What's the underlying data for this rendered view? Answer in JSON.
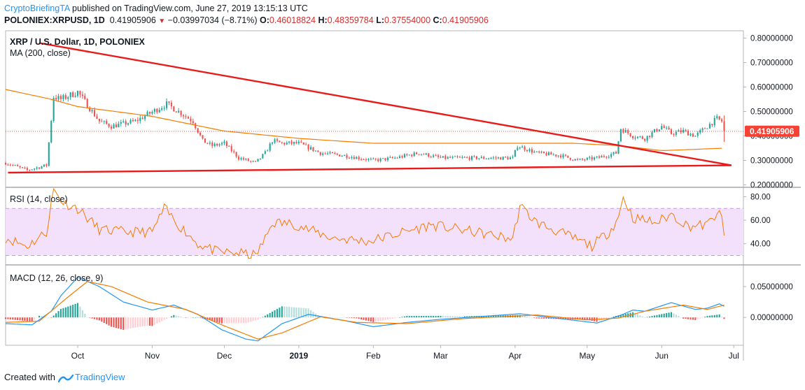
{
  "header": {
    "author": "CryptoBriefingTA",
    "published": " published on TradingView.com, June 27, 2019 13:15:13 UTC"
  },
  "symbol_line": {
    "symbol": "POLONIEX:XRPUSD, 1D",
    "last": "0.41905906",
    "change": "−0.03997034 (−8.71%)",
    "o_label": "O:",
    "o": "0.46018824",
    "h_label": "H:",
    "h": "0.48359784",
    "l_label": "L:",
    "l": "0.37554000",
    "c_label": "C:",
    "c": "0.41905906"
  },
  "footer": {
    "created_with": "Created with",
    "brand": "TradingView"
  },
  "colors": {
    "up": "#26a69a",
    "down": "#ef5350",
    "ma": "#f57c00",
    "trend": "#e81a1a",
    "rsi": "#f57c00",
    "macd": "#2196f3",
    "signal": "#f57c00",
    "price_label_bg": "#f44336",
    "rsi_band": "#f3e0fb"
  },
  "chart_data": [
    {
      "type": "candlestick",
      "title": "XRP / U.S. Dollar, 1D, POLONIEX",
      "indicator_label": "MA (200, close)",
      "x_tick_labels": [
        "Oct",
        "Nov",
        "Dec",
        "2019",
        "Feb",
        "Mar",
        "Apr",
        "May",
        "Jun",
        "Jul"
      ],
      "y_ticks": [
        "0.80000000",
        "0.70000000",
        "0.60000000",
        "0.50000000",
        "0.40000000",
        "0.30000000",
        "0.20000000"
      ],
      "ylim": [
        0.19,
        0.83
      ],
      "last_price_label": "0.41905906",
      "close_anchors": [
        [
          "2018-09-01",
          0.29
        ],
        [
          "2018-09-10",
          0.26
        ],
        [
          "2018-09-18",
          0.28
        ],
        [
          "2018-09-21",
          0.56
        ],
        [
          "2018-09-24",
          0.55
        ],
        [
          "2018-10-01",
          0.58
        ],
        [
          "2018-10-10",
          0.46
        ],
        [
          "2018-10-15",
          0.44
        ],
        [
          "2018-10-25",
          0.46
        ],
        [
          "2018-11-05",
          0.52
        ],
        [
          "2018-11-07",
          0.53
        ],
        [
          "2018-11-12",
          0.5
        ],
        [
          "2018-11-18",
          0.46
        ],
        [
          "2018-11-22",
          0.38
        ],
        [
          "2018-11-26",
          0.36
        ],
        [
          "2018-12-01",
          0.37
        ],
        [
          "2018-12-07",
          0.31
        ],
        [
          "2018-12-14",
          0.29
        ],
        [
          "2018-12-18",
          0.33
        ],
        [
          "2018-12-21",
          0.38
        ],
        [
          "2018-12-25",
          0.37
        ],
        [
          "2019-01-01",
          0.37
        ],
        [
          "2019-01-10",
          0.33
        ],
        [
          "2019-01-20",
          0.32
        ],
        [
          "2019-02-01",
          0.3
        ],
        [
          "2019-02-10",
          0.31
        ],
        [
          "2019-02-20",
          0.33
        ],
        [
          "2019-03-01",
          0.31
        ],
        [
          "2019-03-20",
          0.31
        ],
        [
          "2019-03-31",
          0.31
        ],
        [
          "2019-04-02",
          0.36
        ],
        [
          "2019-04-10",
          0.33
        ],
        [
          "2019-04-20",
          0.32
        ],
        [
          "2019-04-27",
          0.3
        ],
        [
          "2019-05-05",
          0.31
        ],
        [
          "2019-05-13",
          0.33
        ],
        [
          "2019-05-15",
          0.43
        ],
        [
          "2019-05-20",
          0.4
        ],
        [
          "2019-05-25",
          0.39
        ],
        [
          "2019-06-01",
          0.44
        ],
        [
          "2019-06-05",
          0.41
        ],
        [
          "2019-06-10",
          0.42
        ],
        [
          "2019-06-15",
          0.4
        ],
        [
          "2019-06-20",
          0.44
        ],
        [
          "2019-06-24",
          0.47
        ],
        [
          "2019-06-26",
          0.46
        ],
        [
          "2019-06-27",
          0.419
        ]
      ],
      "ma200_anchors": [
        [
          "2018-09-01",
          0.59
        ],
        [
          "2018-09-20",
          0.55
        ],
        [
          "2018-10-01",
          0.52
        ],
        [
          "2018-11-01",
          0.48
        ],
        [
          "2018-12-01",
          0.42
        ],
        [
          "2019-01-01",
          0.39
        ],
        [
          "2019-02-01",
          0.37
        ],
        [
          "2019-03-01",
          0.37
        ],
        [
          "2019-04-01",
          0.37
        ],
        [
          "2019-04-25",
          0.37
        ],
        [
          "2019-05-15",
          0.36
        ],
        [
          "2019-06-01",
          0.34
        ],
        [
          "2019-06-27",
          0.35
        ]
      ],
      "trendlines": [
        {
          "from": [
            "2018-09-15",
            0.78
          ],
          "to": [
            "2019-06-30",
            0.28
          ]
        },
        {
          "from": [
            "2018-09-02",
            0.25
          ],
          "to": [
            "2019-06-30",
            0.28
          ]
        }
      ]
    },
    {
      "type": "line",
      "title": "RSI (14, close)",
      "y_ticks": [
        "80.00",
        "60.00",
        "40.00"
      ],
      "ylim": [
        22,
        88
      ],
      "band": [
        30,
        70
      ],
      "anchors": [
        [
          "2018-09-01",
          45
        ],
        [
          "2018-09-10",
          38
        ],
        [
          "2018-09-18",
          50
        ],
        [
          "2018-09-21",
          86
        ],
        [
          "2018-09-25",
          75
        ],
        [
          "2018-10-01",
          70
        ],
        [
          "2018-10-10",
          52
        ],
        [
          "2018-10-20",
          50
        ],
        [
          "2018-11-01",
          50
        ],
        [
          "2018-11-06",
          70
        ],
        [
          "2018-11-12",
          56
        ],
        [
          "2018-11-20",
          40
        ],
        [
          "2018-11-28",
          33
        ],
        [
          "2018-12-07",
          32
        ],
        [
          "2018-12-14",
          30
        ],
        [
          "2018-12-18",
          44
        ],
        [
          "2018-12-21",
          58
        ],
        [
          "2018-12-30",
          57
        ],
        [
          "2019-01-05",
          52
        ],
        [
          "2019-01-15",
          45
        ],
        [
          "2019-01-30",
          42
        ],
        [
          "2019-02-10",
          48
        ],
        [
          "2019-02-25",
          56
        ],
        [
          "2019-03-15",
          50
        ],
        [
          "2019-03-31",
          44
        ],
        [
          "2019-04-03",
          72
        ],
        [
          "2019-04-10",
          58
        ],
        [
          "2019-04-25",
          45
        ],
        [
          "2019-05-03",
          38
        ],
        [
          "2019-05-10",
          50
        ],
        [
          "2019-05-14",
          62
        ],
        [
          "2019-05-16",
          80
        ],
        [
          "2019-05-20",
          62
        ],
        [
          "2019-05-30",
          58
        ],
        [
          "2019-06-05",
          65
        ],
        [
          "2019-06-12",
          55
        ],
        [
          "2019-06-20",
          56
        ],
        [
          "2019-06-24",
          66
        ],
        [
          "2019-06-26",
          62
        ],
        [
          "2019-06-27",
          47
        ]
      ]
    },
    {
      "type": "line",
      "title": "MACD (12, 26, close, 9)",
      "y_ticks": [
        "0.05000000",
        "0.00000000"
      ],
      "ylim": [
        -0.045,
        0.085
      ],
      "series": [
        {
          "role": "macd",
          "anchors": [
            [
              "2018-09-01",
              -0.01
            ],
            [
              "2018-09-12",
              -0.012
            ],
            [
              "2018-09-20",
              0.01
            ],
            [
              "2018-09-24",
              0.035
            ],
            [
              "2018-10-01",
              0.065
            ],
            [
              "2018-10-10",
              0.05
            ],
            [
              "2018-10-20",
              0.025
            ],
            [
              "2018-11-01",
              0.012
            ],
            [
              "2018-11-10",
              0.02
            ],
            [
              "2018-11-20",
              0.005
            ],
            [
              "2018-11-30",
              -0.02
            ],
            [
              "2018-12-10",
              -0.035
            ],
            [
              "2018-12-15",
              -0.038
            ],
            [
              "2018-12-25",
              -0.01
            ],
            [
              "2019-01-05",
              0.005
            ],
            [
              "2019-01-20",
              -0.005
            ],
            [
              "2019-02-01",
              -0.015
            ],
            [
              "2019-02-15",
              -0.008
            ],
            [
              "2019-03-01",
              -0.003
            ],
            [
              "2019-04-03",
              0.006
            ],
            [
              "2019-04-20",
              -0.002
            ],
            [
              "2019-05-05",
              -0.009
            ],
            [
              "2019-05-14",
              0.002
            ],
            [
              "2019-05-20",
              0.012
            ],
            [
              "2019-05-25",
              0.01
            ],
            [
              "2019-06-05",
              0.024
            ],
            [
              "2019-06-15",
              0.013
            ],
            [
              "2019-06-20",
              0.015
            ],
            [
              "2019-06-25",
              0.022
            ],
            [
              "2019-06-27",
              0.018
            ]
          ]
        },
        {
          "role": "signal",
          "anchors": [
            [
              "2018-09-01",
              -0.008
            ],
            [
              "2018-09-15",
              -0.006
            ],
            [
              "2018-09-26",
              0.03
            ],
            [
              "2018-10-05",
              0.058
            ],
            [
              "2018-10-15",
              0.05
            ],
            [
              "2018-10-30",
              0.025
            ],
            [
              "2018-11-15",
              0.013
            ],
            [
              "2018-11-30",
              -0.012
            ],
            [
              "2018-12-15",
              -0.035
            ],
            [
              "2018-12-25",
              -0.025
            ],
            [
              "2019-01-10",
              0.001
            ],
            [
              "2019-01-25",
              -0.008
            ],
            [
              "2019-02-15",
              -0.01
            ],
            [
              "2019-03-10",
              -0.002
            ],
            [
              "2019-04-10",
              0.004
            ],
            [
              "2019-05-01",
              -0.004
            ],
            [
              "2019-05-14",
              -0.001
            ],
            [
              "2019-05-25",
              0.01
            ],
            [
              "2019-06-10",
              0.02
            ],
            [
              "2019-06-20",
              0.013
            ],
            [
              "2019-06-27",
              0.02
            ]
          ]
        }
      ]
    }
  ]
}
